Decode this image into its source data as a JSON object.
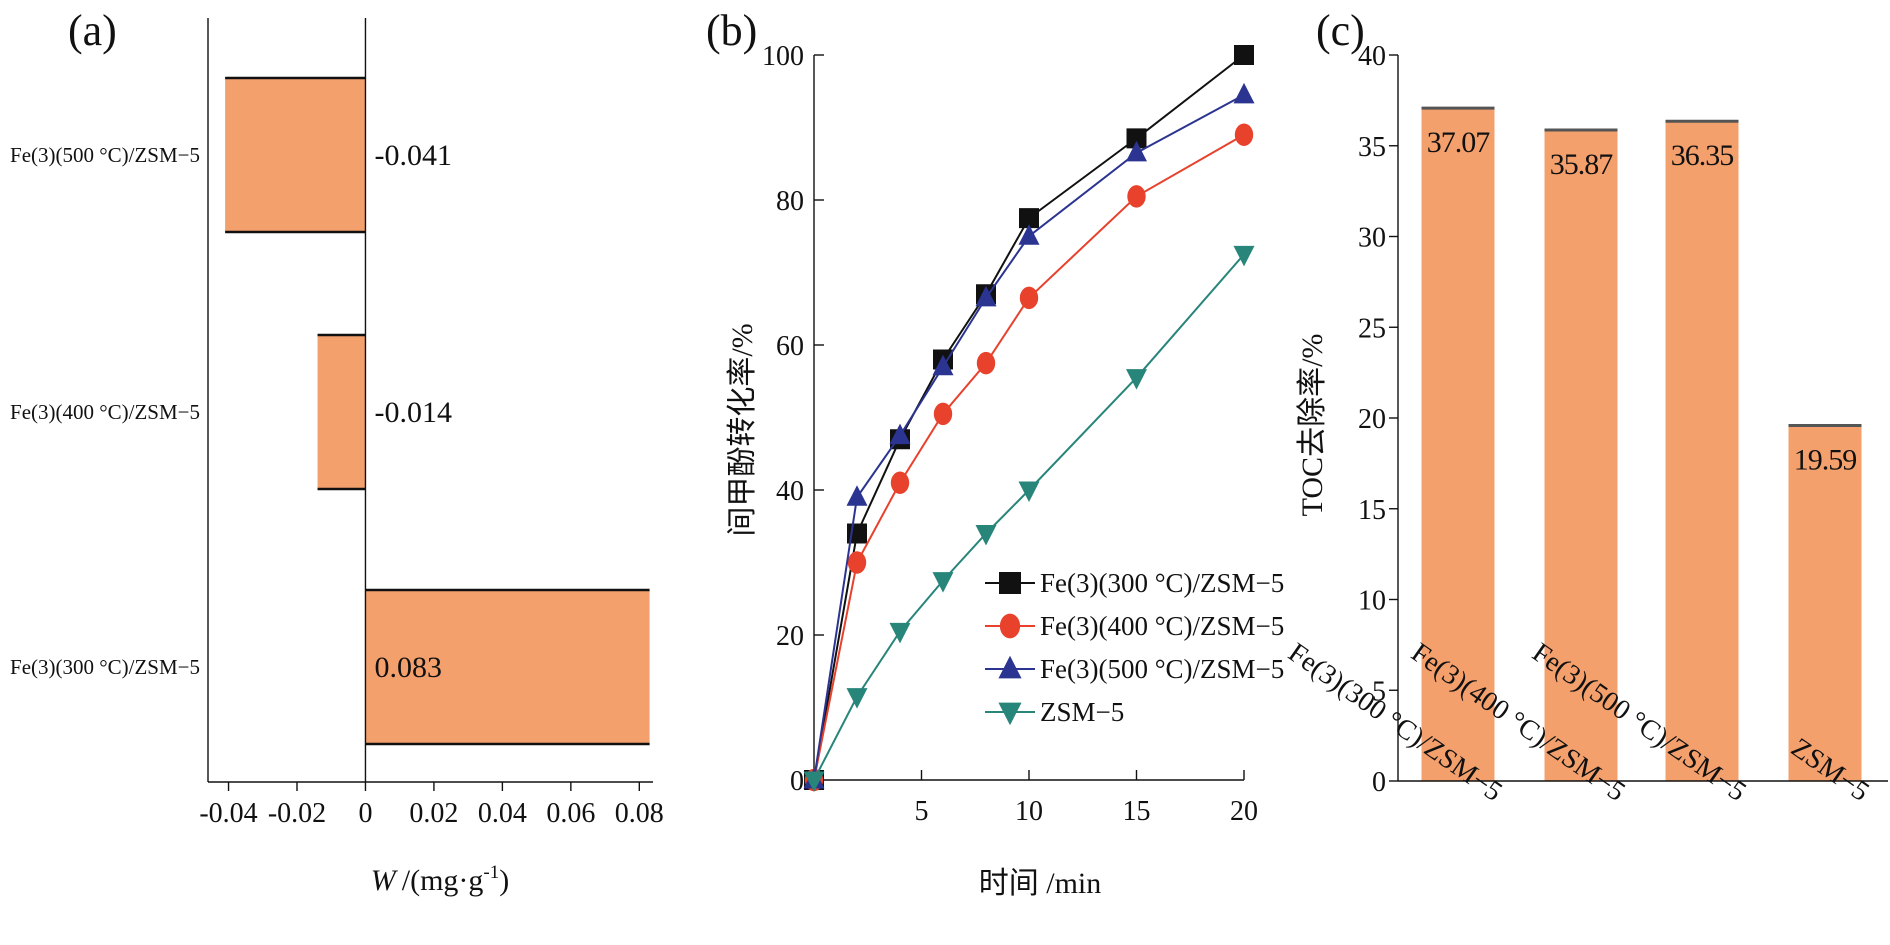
{
  "charts": {
    "a": {
      "panel_label": "(a)",
      "type": "bar",
      "orientation": "horizontal",
      "categories": [
        "Fe(3)(500 °C)/ZSM−5",
        "Fe(3)(400 °C)/ZSM−5",
        "Fe(3)(300 °C)/ZSM−5"
      ],
      "values": [
        -0.041,
        -0.014,
        0.083
      ],
      "data_labels": [
        "-0.041",
        "-0.014",
        "0.083"
      ],
      "xlim": [
        -0.046,
        0.084
      ],
      "xticks": [
        -0.04,
        -0.02,
        0,
        0.02,
        0.04,
        0.06,
        0.08
      ],
      "xtick_labels": [
        "-0.04",
        "-0.02",
        "0",
        "0.02",
        "0.04",
        "0.06",
        "0.08"
      ],
      "xlabel_symbol": "W",
      "xlabel_unit": "/(mg·g",
      "xlabel_exp": "-1",
      "xlabel_close": ")",
      "bar_color": "#f4a06d"
    },
    "b": {
      "panel_label": "(b)",
      "type": "line",
      "x": [
        0,
        2,
        4,
        6,
        8,
        10,
        15,
        20
      ],
      "series": [
        {
          "name": "Fe(3)(300 °C)/ZSM−5",
          "values": [
            0,
            34,
            47,
            58,
            67,
            77.5,
            88.5,
            100
          ],
          "color": "#111111",
          "marker": "square"
        },
        {
          "name": "Fe(3)(400 °C)/ZSM−5",
          "values": [
            0,
            30,
            41,
            50.5,
            57.5,
            66.5,
            80.5,
            89
          ],
          "color": "#e8412c",
          "marker": "circle"
        },
        {
          "name": "Fe(3)(500 °C)/ZSM−5",
          "values": [
            0,
            39,
            47.5,
            57,
            66.5,
            75,
            86.5,
            94.5
          ],
          "color": "#2b3490",
          "marker": "triangle-up"
        },
        {
          "name": "ZSM−5",
          "values": [
            0,
            11.5,
            20.5,
            27.5,
            34,
            40,
            55.5,
            72.5
          ],
          "color": "#27857a",
          "marker": "triangle-down"
        }
      ],
      "xlim": [
        0,
        20
      ],
      "ylim": [
        0,
        100
      ],
      "xticks": [
        5,
        10,
        15,
        20
      ],
      "yticks": [
        0,
        20,
        40,
        60,
        80,
        100
      ],
      "xlabel": "时间  /min",
      "ylabel": "间甲酚转化率/%",
      "legend_position": "lower-right"
    },
    "c": {
      "panel_label": "(c)",
      "type": "bar",
      "categories": [
        "Fe(3)(300 °C)/ZSM−5",
        "Fe(3)(400 °C)/ZSM−5",
        "Fe(3)(500 °C)/ZSM−5",
        "ZSM−5"
      ],
      "values": [
        37.07,
        35.87,
        36.35,
        19.59
      ],
      "data_labels": [
        "37.07",
        "35.87",
        "36.35",
        "19.59"
      ],
      "ylim": [
        0,
        40
      ],
      "yticks": [
        0,
        5,
        10,
        15,
        20,
        25,
        30,
        35,
        40
      ],
      "ylabel": "TOC去除率/%",
      "bar_color": "#f4a06d"
    }
  }
}
